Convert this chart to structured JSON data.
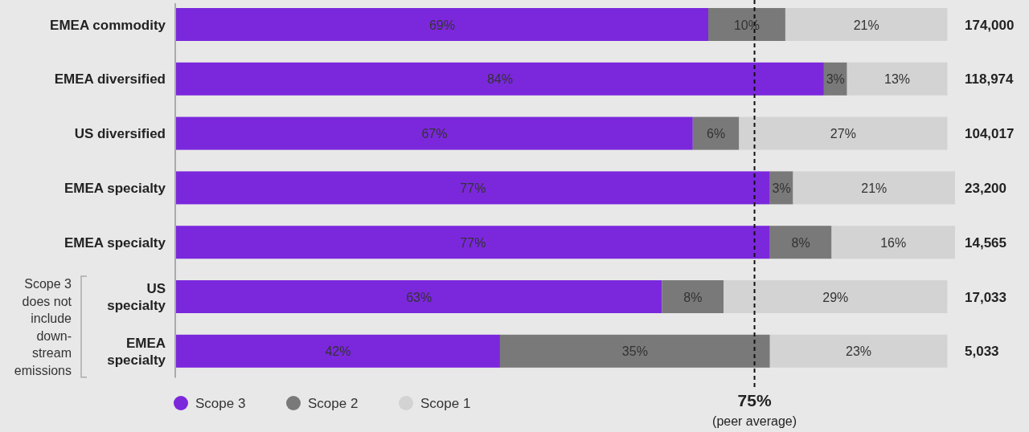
{
  "chart_data": {
    "type": "bar",
    "orientation": "horizontal",
    "stacked": true,
    "categories": [
      "EMEA commodity",
      "EMEA diversified",
      "US diversified",
      "EMEA specialty",
      "EMEA specialty",
      "US specialty",
      "EMEA specialty"
    ],
    "series": [
      {
        "name": "Scope 3",
        "color": "#7b27dc",
        "values": [
          69,
          84,
          67,
          77,
          77,
          63,
          42
        ],
        "value_labels": [
          "69%",
          "84%",
          "67%",
          "77%",
          "77%",
          "63%",
          "42%"
        ]
      },
      {
        "name": "Scope 2",
        "color": "#797979",
        "values": [
          10,
          3,
          6,
          3,
          8,
          8,
          35
        ],
        "value_labels": [
          "10%",
          "3%",
          "6%",
          "3%",
          "8%",
          "8%",
          "35%"
        ]
      },
      {
        "name": "Scope 1",
        "color": "#d3d3d3",
        "values": [
          21,
          13,
          27,
          21,
          16,
          29,
          23
        ],
        "value_labels": [
          "21%",
          "13%",
          "27%",
          "21%",
          "16%",
          "29%",
          "23%"
        ]
      }
    ],
    "ref_lines": [
      {
        "axis": "x",
        "value": 75,
        "label": "75%",
        "line_style": "dashed",
        "color": "#111111"
      }
    ],
    "annotations": [
      "174,000",
      "118,974",
      "104,017",
      "23,200",
      "14,565",
      "17,033",
      "5,033",
      "(peer average)",
      "Scope 3 does not include down-stream emissions"
    ],
    "legend": "bottom left"
  }
}
